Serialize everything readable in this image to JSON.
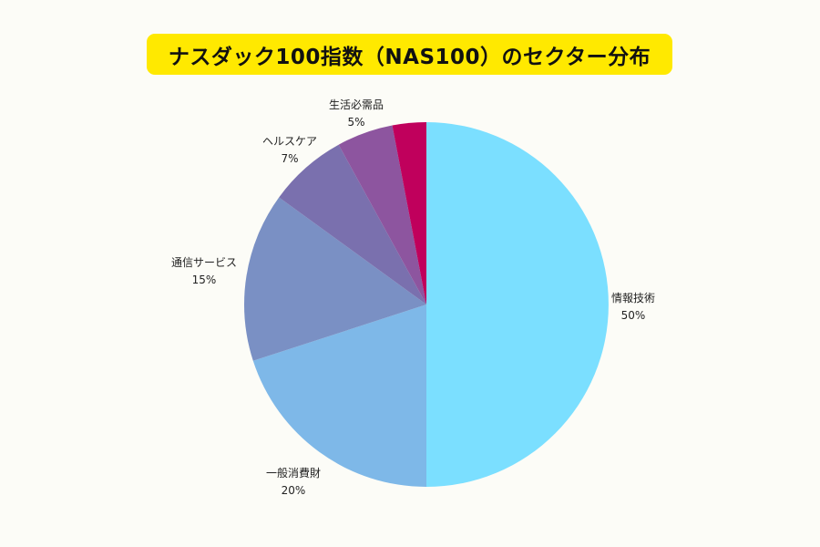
{
  "title": "ナスダック100指数（NAS100）のセクター分布",
  "chart_data": {
    "type": "pie",
    "title": "ナスダック100指数（NAS100）のセクター分布",
    "start_angle": "12 o'clock, clockwise",
    "categories": [
      "情報技術",
      "一般消費財",
      "通信サービス",
      "ヘルスケア",
      "生活必需品",
      ""
    ],
    "values": [
      50,
      20,
      15,
      7,
      5,
      3
    ],
    "labels": [
      {
        "name": "情報技術",
        "pct": "50%"
      },
      {
        "name": "一般消費財",
        "pct": "20%"
      },
      {
        "name": "通信サービス",
        "pct": "15%"
      },
      {
        "name": "ヘルスケア",
        "pct": "7%"
      },
      {
        "name": "生活必需品",
        "pct": "5%"
      }
    ],
    "colors": [
      "#7BDFFF",
      "#7EB8E8",
      "#7A90C4",
      "#7A70AE",
      "#8D559F",
      "#C0005C"
    ],
    "legend": "none (direct labels)"
  },
  "colors": {
    "background": "#FCFCF7",
    "title_bg": "#FFE900"
  }
}
